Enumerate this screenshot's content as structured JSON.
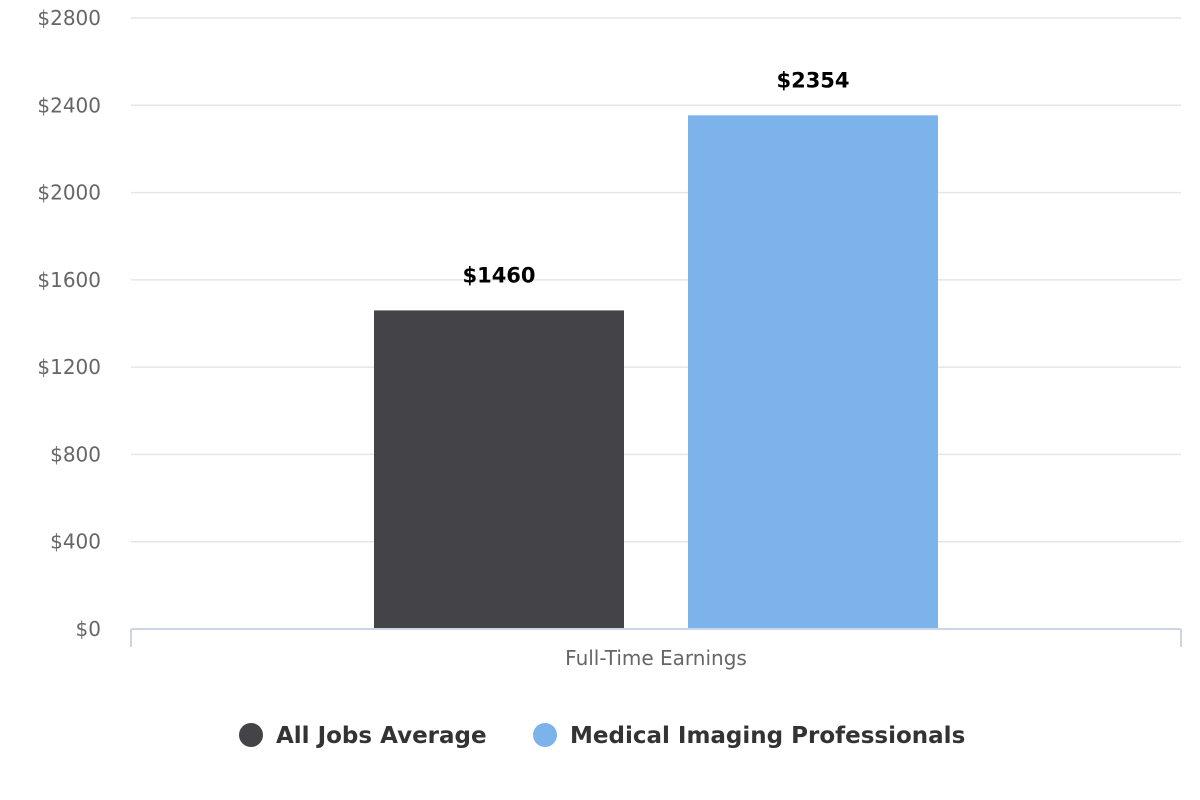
{
  "chart_data": {
    "type": "bar",
    "categories": [
      "Full-Time Earnings"
    ],
    "series": [
      {
        "name": "All Jobs Average",
        "values": [
          1460
        ],
        "color": "#444448",
        "label": "$1460"
      },
      {
        "name": "Medical Imaging Professionals",
        "values": [
          2354
        ],
        "color": "#7cb3ea",
        "label": "$2354"
      }
    ],
    "ylim": [
      0,
      2800
    ],
    "yticks": [
      0,
      400,
      800,
      1200,
      1600,
      2000,
      2400,
      2800
    ],
    "ytick_labels": [
      "$0",
      "$400",
      "$800",
      "$1200",
      "$1600",
      "$2000",
      "$2400",
      "$2800"
    ],
    "title": "",
    "xlabel": "",
    "ylabel": "",
    "grid": true,
    "legend_position": "bottom-center"
  },
  "colors": {
    "grid": "#e6e6e6",
    "axis": "#ccd6eb",
    "tick_text": "#666666",
    "legend_text": "#333333"
  }
}
